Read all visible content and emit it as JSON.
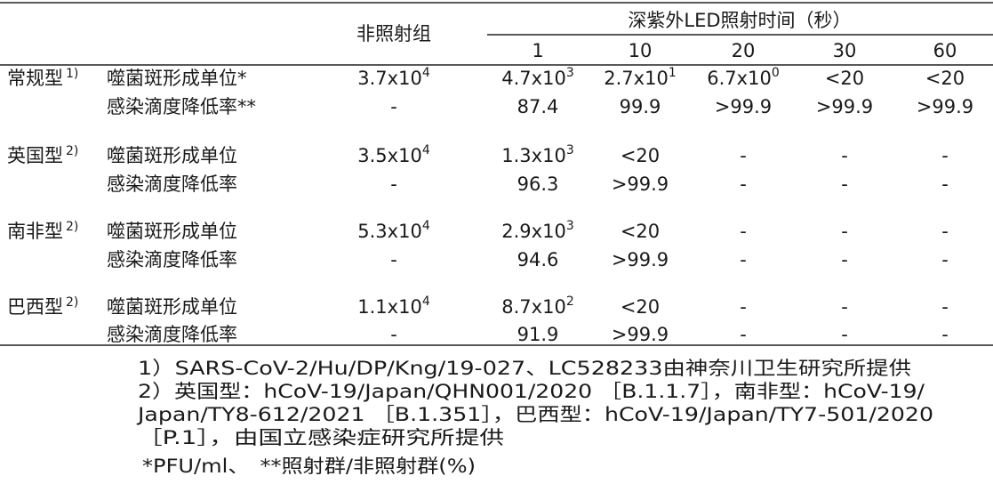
{
  "table": {
    "header": {
      "non_irradiated": "非照射组",
      "group": "深紫外LED照射时间（秒）",
      "times": [
        "1",
        "10",
        "20",
        "30",
        "60"
      ]
    },
    "groups": [
      {
        "name": "常规型",
        "note": "1)",
        "rows": [
          {
            "label": "噬菌斑形成单位*",
            "cells": [
              {
                "text": "3.7x10",
                "sup": "4"
              },
              {
                "text": "4.7x10",
                "sup": "3"
              },
              {
                "text": "2.7x10",
                "sup": "1"
              },
              {
                "text": "6.7x10",
                "sup": "0"
              },
              "<20",
              "<20"
            ]
          },
          {
            "label": "感染滴度降低率**",
            "cells": [
              "-",
              "87.4",
              "99.9",
              ">99.9",
              ">99.9",
              ">99.9"
            ]
          }
        ]
      },
      {
        "name": "英国型",
        "note": "2)",
        "rows": [
          {
            "label": "噬菌斑形成单位",
            "cells": [
              {
                "text": "3.5x10",
                "sup": "4"
              },
              {
                "text": "1.3x10",
                "sup": "3"
              },
              "<20",
              "-",
              "-",
              "-"
            ]
          },
          {
            "label": "感染滴度降低率",
            "cells": [
              "-",
              "96.3",
              ">99.9",
              "-",
              "-",
              "-"
            ]
          }
        ]
      },
      {
        "name": "南非型",
        "note": "2)",
        "rows": [
          {
            "label": "噬菌斑形成单位",
            "cells": [
              {
                "text": "5.3x10",
                "sup": "4"
              },
              {
                "text": "2.9x10",
                "sup": "3"
              },
              "<20",
              "-",
              "-",
              "-"
            ]
          },
          {
            "label": "感染滴度降低率",
            "cells": [
              "-",
              "94.6",
              ">99.9",
              "-",
              "-",
              "-"
            ]
          }
        ]
      },
      {
        "name": "巴西型",
        "note": "2)",
        "rows": [
          {
            "label": "噬菌斑形成单位",
            "cells": [
              {
                "text": "1.1x10",
                "sup": "4"
              },
              {
                "text": "8.7x10",
                "sup": "2"
              },
              "<20",
              "-",
              "-",
              "-"
            ]
          },
          {
            "label": "感染滴度降低率",
            "cells": [
              "-",
              "91.9",
              ">99.9",
              "-",
              "-",
              "-"
            ]
          }
        ]
      }
    ]
  },
  "footnotes": [
    "1）SARS-CoV-2/Hu/DP/Kng/19-027、LC528233由神奈川卫生研究所提供",
    "2）英国型：hCoV-19/Japan/QHN001/2020 ［B.1.1.7］，南非型：hCoV-19/",
    "Japan/TY8-612/2021 ［B.1.351］，巴西型：hCoV-19/Japan/TY7-501/2020",
    "［P.1］，由国立感染症研究所提供",
    "*PFU/ml、　**照射群/非照射群(%)"
  ]
}
